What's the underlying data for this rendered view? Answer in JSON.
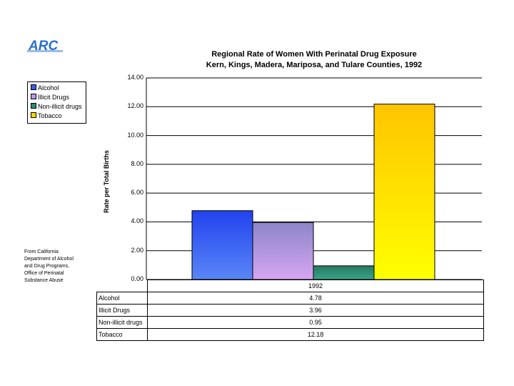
{
  "chart_data": {
    "type": "bar",
    "title": "Regional Rate of Women With Perinatal Drug Exposure",
    "subtitle": "Kern, Kings, Madera, Mariposa, and Tulare Counties, 1992",
    "xlabel": "",
    "ylabel": "Rate per Total Births",
    "categories": [
      "1992"
    ],
    "series": [
      {
        "name": "Alcohol",
        "values": [
          4.78
        ],
        "color": "#3a5cf0"
      },
      {
        "name": "Illicit Drugs",
        "values": [
          3.96
        ],
        "color": "#b49ae8"
      },
      {
        "name": "Non-illicit drugs",
        "values": [
          0.95
        ],
        "color": "#2a8a72"
      },
      {
        "name": "Tobacco",
        "values": [
          12.18
        ],
        "color": "#f7d800"
      }
    ],
    "ylim": [
      0,
      14
    ],
    "yticks": [
      "0.00",
      "2.00",
      "4.00",
      "6.00",
      "8.00",
      "10.00",
      "12.00",
      "14.00"
    ],
    "grid": true,
    "legend_position": "left",
    "data_table": [
      {
        "label": "Alcohol",
        "value": "4.78"
      },
      {
        "label": "Illicit Drugs",
        "value": "3.96"
      },
      {
        "label": "Non-illicit drugs",
        "value": "0.95"
      },
      {
        "label": "Tobacco",
        "value": "12.18"
      }
    ]
  },
  "logo": {
    "text": "ARC"
  },
  "source_note": [
    "From California",
    "Department of Alcohol",
    "and Drug Programs,",
    "Office of Perinatal",
    "Substance Abuse"
  ]
}
